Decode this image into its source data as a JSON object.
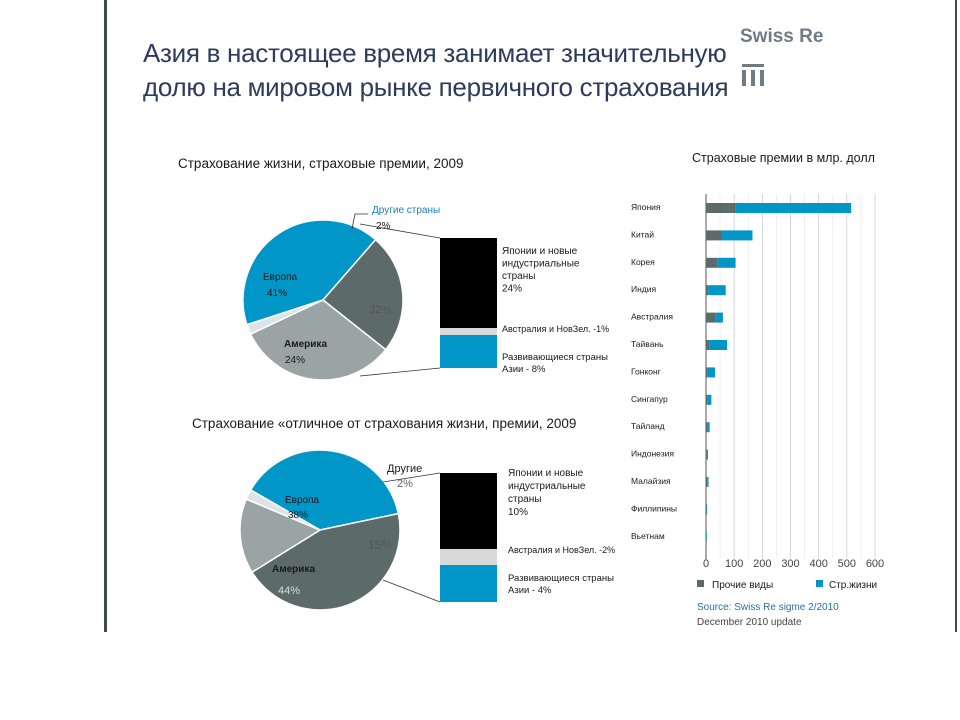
{
  "title": "Азия в настоящее время занимает значительную долю на мировом рынке первичного страхования",
  "brand": "Swiss Re",
  "colors": {
    "title": "#2d3c5a",
    "blue": "#0096c8",
    "slate": "#5c6a6a",
    "grey": "#9aa4a4",
    "light": "#dde3e6",
    "black": "#000000",
    "bargrey": "#d7d9da"
  },
  "chart_data": [
    {
      "type": "pie",
      "title": "Страхование жизни, страховые премии, 2009",
      "slices": [
        {
          "label": "Европа",
          "value": 41,
          "value_label": "41%"
        },
        {
          "label": "Америка",
          "value": 24,
          "value_label": "24%"
        },
        {
          "label": "",
          "value": 32,
          "value_label": "32%"
        },
        {
          "label": "Другие страны",
          "value": 2,
          "value_label": "2%"
        }
      ],
      "breakdown": [
        {
          "label": "Японии и новые индустриальные страны 24%",
          "value": 24
        },
        {
          "label": "Австралия и НовЗел. -1%",
          "value": 1
        },
        {
          "label": "Развивающиеся страны Азии - 8%",
          "value": 8
        }
      ]
    },
    {
      "type": "pie",
      "title": "Страхование «отличное от страхования жизни, премии, 2009",
      "slices": [
        {
          "label": "Европа",
          "value": 38,
          "value_label": "38%"
        },
        {
          "label": "Америка",
          "value": 44,
          "value_label": "44%"
        },
        {
          "label": "",
          "value": 15,
          "value_label": "15%"
        },
        {
          "label": "Другие",
          "value": 2,
          "value_label": "2%"
        }
      ],
      "breakdown": [
        {
          "label": "Японии и новые индустриальные страны 10%",
          "value": 10
        },
        {
          "label": "Австралия и НовЗел. -2%",
          "value": 2
        },
        {
          "label": "Развивающиеся страны Азии - 4%",
          "value": 4
        }
      ]
    },
    {
      "type": "bar",
      "orientation": "horizontal",
      "stacked": true,
      "title": "Страховые премии в млр. долл",
      "categories": [
        "Япония",
        "Китай",
        "Корея",
        "Индия",
        "Австралия",
        "Тайвань",
        "Гонконг",
        "Сингапур",
        "Тайланд",
        "Индонезия",
        "Малайзия",
        "Филлипины",
        "Вьетнам"
      ],
      "series": [
        {
          "name": "Прочие виды",
          "values": [
            105,
            55,
            40,
            8,
            35,
            12,
            5,
            6,
            5,
            3,
            4,
            2,
            1
          ]
        },
        {
          "name": "Стр.жизни",
          "values": [
            410,
            110,
            65,
            62,
            25,
            63,
            27,
            13,
            8,
            4,
            5,
            2,
            1
          ]
        }
      ],
      "xticks": [
        "0",
        "100",
        "200",
        "300",
        "400",
        "500",
        "600"
      ],
      "xlim": [
        0,
        600
      ],
      "grid": true,
      "legend": "bottom",
      "source": "Source: Swiss Re sigme 2/2010",
      "update": "December 2010 update"
    }
  ]
}
